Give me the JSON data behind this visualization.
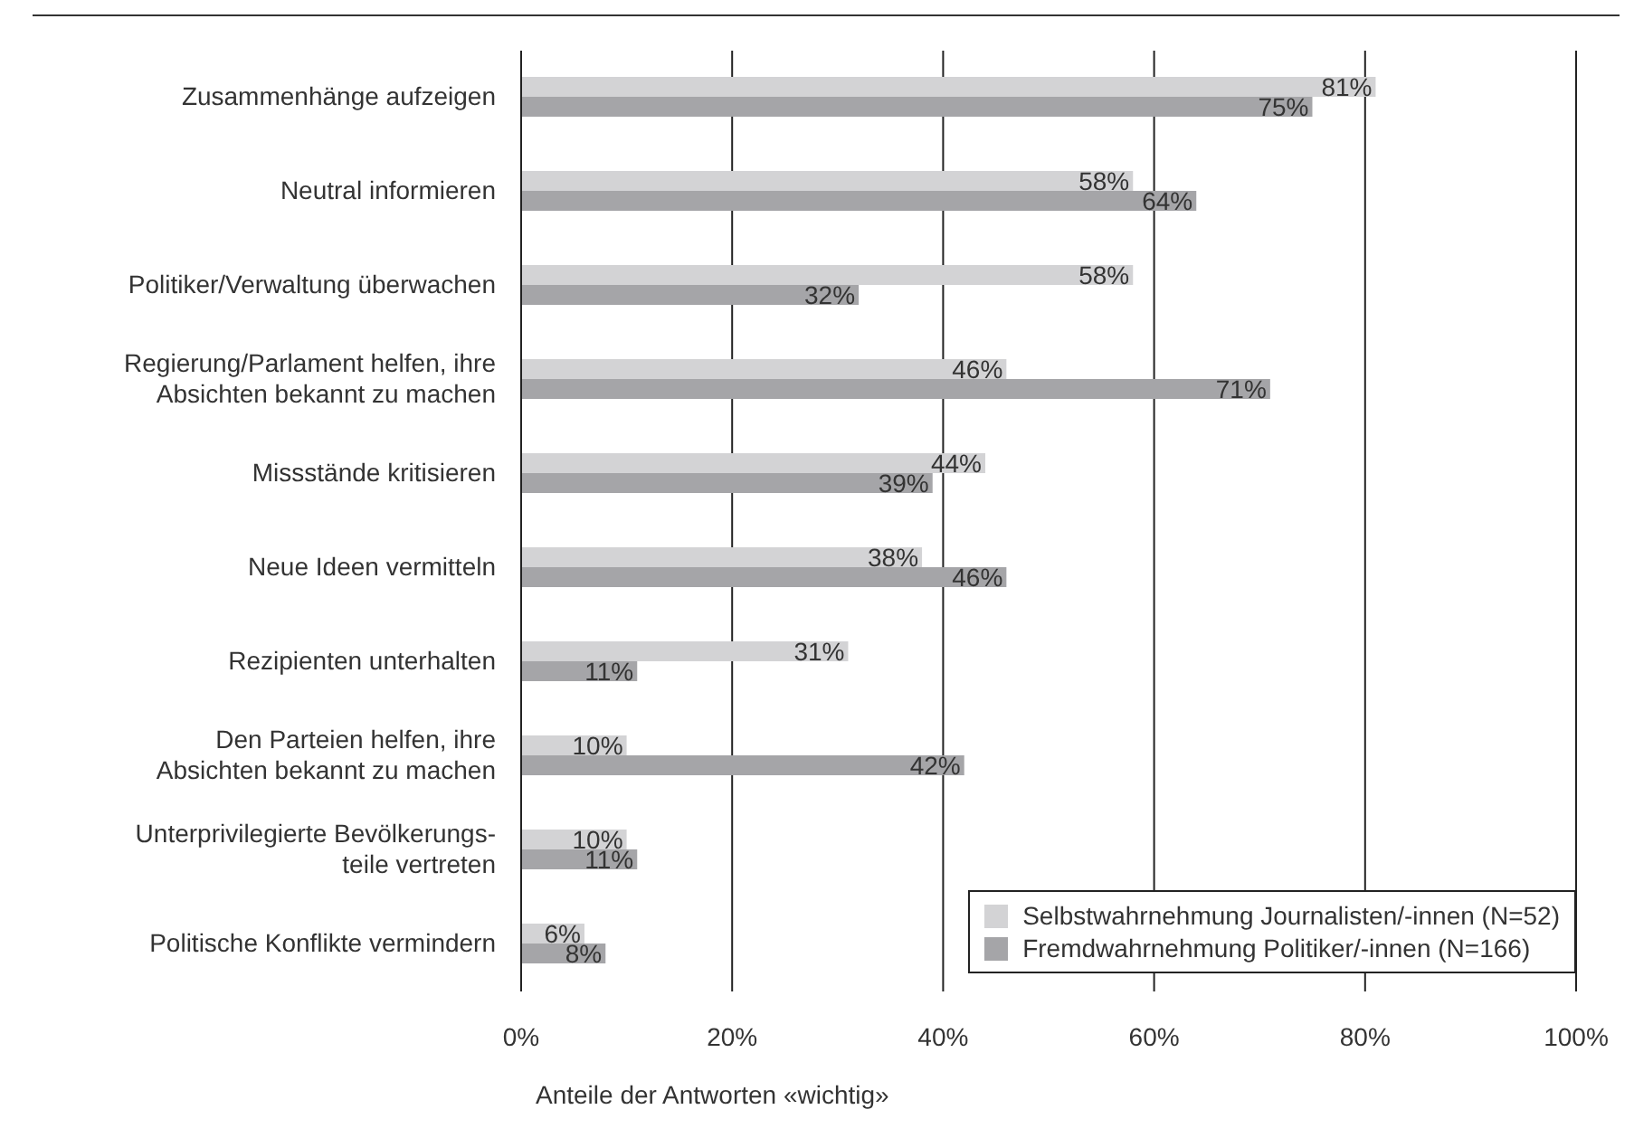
{
  "chart_data": {
    "type": "bar",
    "orientation": "horizontal",
    "xlabel": "Anteile der Antworten «wichtig»",
    "categories": [
      "Zusammenhänge aufzeigen",
      "Neutral informieren",
      "Politiker/Verwaltung überwachen",
      "Regierung/Parlament helfen, ihre\nAbsichten bekannt zu machen",
      "Missstände kritisieren",
      "Neue Ideen vermitteln",
      "Rezipienten unterhalten",
      "Den Parteien helfen, ihre\nAbsichten bekannt zu machen",
      "Unterprivilegierte Bevölkerungs-\nteile vertreten",
      "Politische Konflikte vermindern"
    ],
    "series": [
      {
        "name": "Selbstwahrnehmung Journalisten/-innen (N=52)",
        "color": "#d3d3d5",
        "values": [
          81,
          58,
          58,
          46,
          44,
          38,
          31,
          10,
          10,
          6
        ],
        "value_labels": [
          "81%",
          "58%",
          "58%",
          "46%",
          "44%",
          "38%",
          "31%",
          "10%",
          "10%",
          "6%"
        ]
      },
      {
        "name": "Fremdwahrnehmung Politiker/-innen (N=166)",
        "color": "#a5a5a8",
        "values": [
          75,
          64,
          32,
          71,
          39,
          46,
          11,
          42,
          11,
          8
        ],
        "value_labels": [
          "75%",
          "64%",
          "32%",
          "71%",
          "39%",
          "46%",
          "11%",
          "42%",
          "11%",
          "8%"
        ]
      }
    ],
    "xlim": [
      0,
      100
    ],
    "xticks": [
      {
        "value": 0,
        "label": "0%"
      },
      {
        "value": 20,
        "label": "20%"
      },
      {
        "value": 40,
        "label": "40%"
      },
      {
        "value": 60,
        "label": "60%"
      },
      {
        "value": 80,
        "label": "80%"
      },
      {
        "value": 100,
        "label": "100%"
      }
    ],
    "grid": "x",
    "legend": "bottom right"
  }
}
